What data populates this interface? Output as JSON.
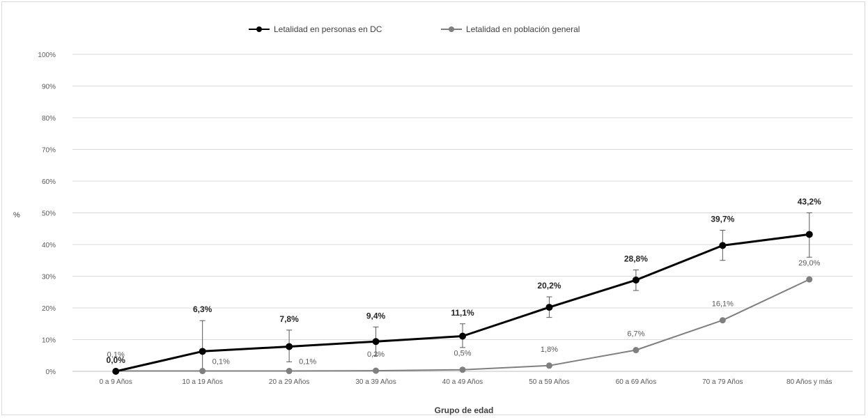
{
  "chart_data": {
    "type": "line",
    "categories": [
      "0 a 9 Años",
      "10 a 19 Años",
      "20 a 29 Años",
      "30 a 39 Años",
      "40 a 49 Años",
      "50 a 59 Años",
      "60 a 69 Años",
      "70 a 79 Años",
      "80 Años y más"
    ],
    "series": [
      {
        "name": "Letalidad en personas en DC",
        "values": [
          0.0,
          6.3,
          7.8,
          9.4,
          11.1,
          20.2,
          28.8,
          39.7,
          43.2
        ],
        "labels": [
          "0,0%",
          "6,3%",
          "7,8%",
          "9,4%",
          "11,1%",
          "20,2%",
          "28,8%",
          "39,7%",
          "43,2%"
        ],
        "error_low": [
          0,
          0,
          3,
          5,
          7.5,
          17,
          25.5,
          35,
          36
        ],
        "error_high": [
          0,
          16,
          13,
          14,
          15,
          23.5,
          32,
          44.5,
          50
        ],
        "color": "#000000"
      },
      {
        "name": "Letalidad en población general",
        "values": [
          0.1,
          0.1,
          0.1,
          0.2,
          0.5,
          1.8,
          6.7,
          16.1,
          29.0
        ],
        "labels": [
          "0,1%",
          "0,1%",
          "0,1%",
          "0,2%",
          "0,5%",
          "1,8%",
          "6,7%",
          "16,1%",
          "29,0%"
        ],
        "color": "#7f7f7f"
      }
    ],
    "xlabel": "Grupo de edad",
    "ylabel": "%",
    "ylim": [
      0,
      100
    ],
    "yticks": [
      "0%",
      "10%",
      "20%",
      "30%",
      "40%",
      "50%",
      "60%",
      "70%",
      "80%",
      "90%",
      "100%"
    ],
    "grid": true,
    "legend": "top-center"
  }
}
